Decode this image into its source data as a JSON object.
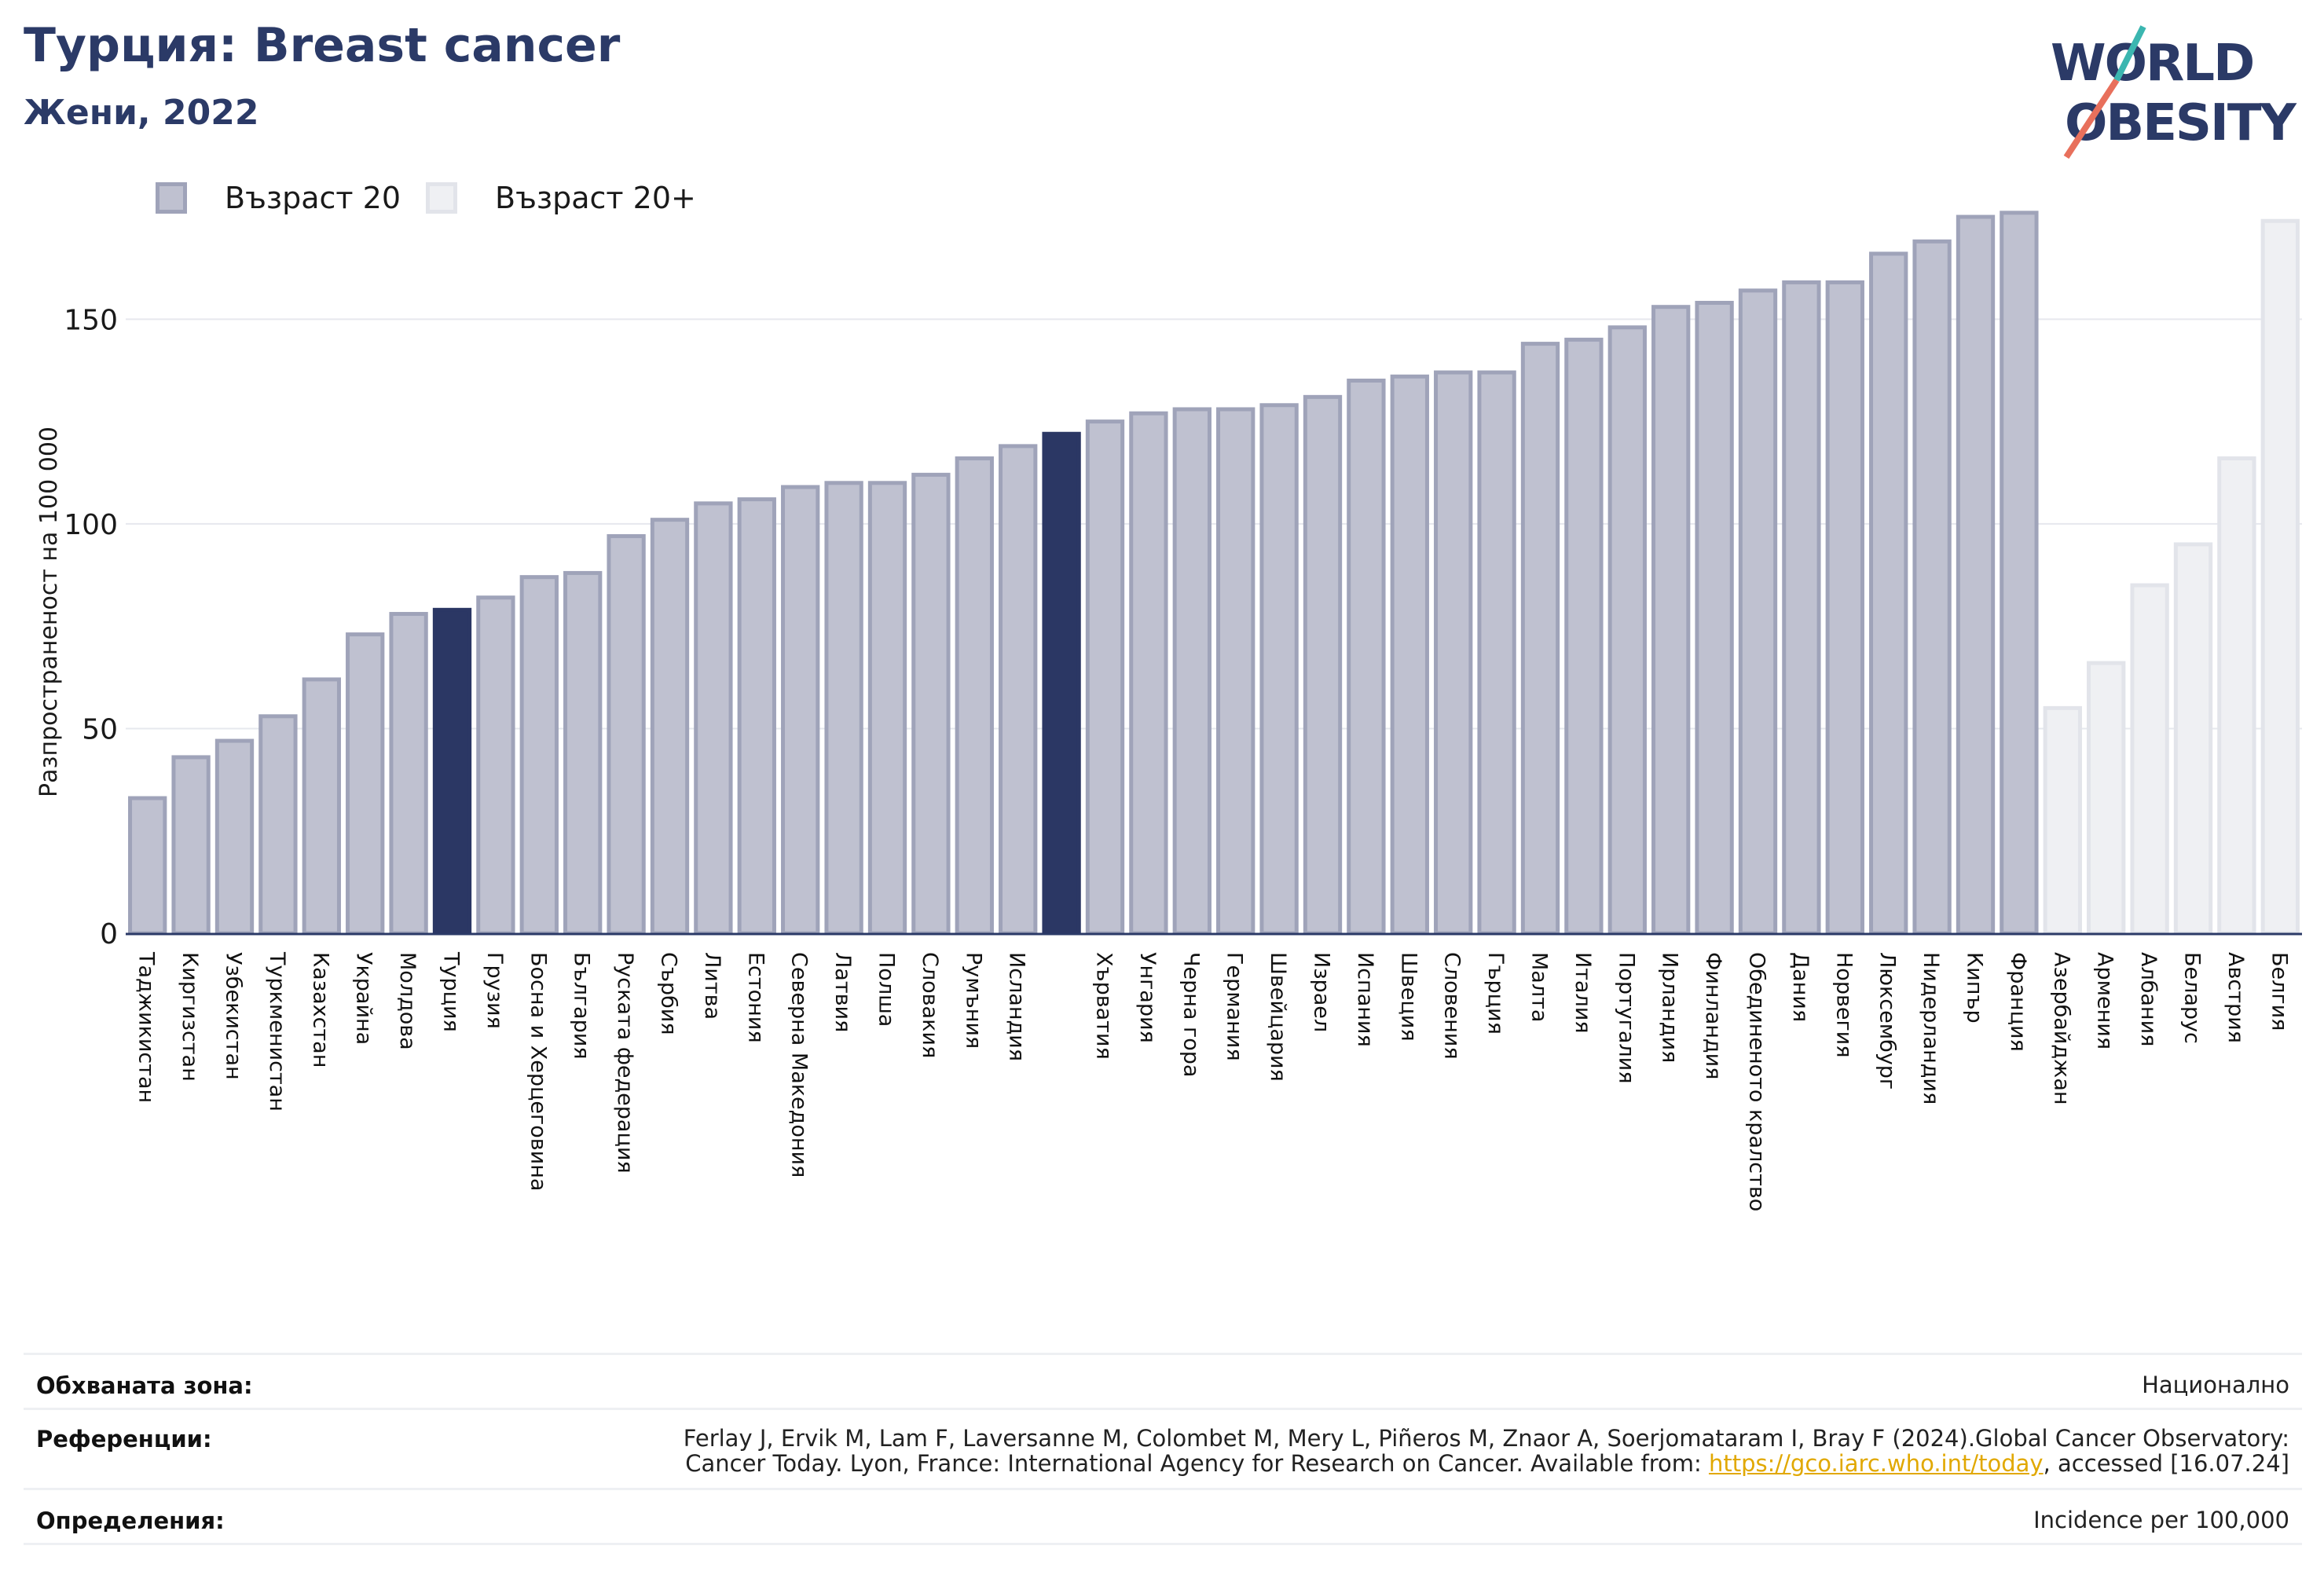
{
  "header": {
    "title": "Турция: Breast cancer",
    "subtitle": "Жени, 2022",
    "logo_text": "WORLD OBESITY"
  },
  "legend": {
    "items": [
      {
        "label": "Възраст 20",
        "color": "#bfc1d0",
        "border": "#9fa3b9"
      },
      {
        "label": "Възраст 20+",
        "color": "#eff0f3",
        "border": "#e2e4ea"
      }
    ]
  },
  "colors": {
    "highlight": "#2b3764",
    "series_main_fill": "#bfc1d0",
    "series_main_stroke": "#9fa3b9",
    "series_secondary_fill": "#eff0f3",
    "series_secondary_stroke": "#e2e4ea",
    "grid": "#e6e8ee",
    "axis": "#2b3a67",
    "link": "#e1a800"
  },
  "chart_data": {
    "type": "bar",
    "title": "Турция: Breast cancer",
    "subtitle": "Жени, 2022",
    "ylabel": "Разпространеност  на 100 000",
    "xlabel": "",
    "ylim": [
      0,
      180
    ],
    "yticks": [
      0,
      50,
      100,
      150
    ],
    "grid": true,
    "legend_position": "top-left",
    "bars": [
      {
        "category": "Таджикистан",
        "value": 33,
        "series": "Възраст 20"
      },
      {
        "category": "Киргизстан",
        "value": 43,
        "series": "Възраст 20"
      },
      {
        "category": "Узбекистан",
        "value": 47,
        "series": "Възраст 20"
      },
      {
        "category": "Туркменистан",
        "value": 53,
        "series": "Възраст 20"
      },
      {
        "category": "Казахстан",
        "value": 62,
        "series": "Възраст 20"
      },
      {
        "category": "Украйна",
        "value": 73,
        "series": "Възраст 20"
      },
      {
        "category": "Молдова",
        "value": 78,
        "series": "Възраст 20"
      },
      {
        "category": "Турция",
        "value": 79,
        "series": "Възраст 20",
        "highlight": true
      },
      {
        "category": "Грузия",
        "value": 82,
        "series": "Възраст 20"
      },
      {
        "category": "Босна и Херцеговина",
        "value": 87,
        "series": "Възраст 20"
      },
      {
        "category": "България",
        "value": 88,
        "series": "Възраст 20"
      },
      {
        "category": "Руската федерация",
        "value": 97,
        "series": "Възраст 20"
      },
      {
        "category": "Сърбия",
        "value": 101,
        "series": "Възраст 20"
      },
      {
        "category": "Литва",
        "value": 105,
        "series": "Възраст 20"
      },
      {
        "category": "Естония",
        "value": 106,
        "series": "Възраст 20"
      },
      {
        "category": "Северна Македония",
        "value": 109,
        "series": "Възраст 20"
      },
      {
        "category": "Латвия",
        "value": 110,
        "series": "Възраст 20"
      },
      {
        "category": "Полша",
        "value": 110,
        "series": "Възраст 20"
      },
      {
        "category": "Словакия",
        "value": 112,
        "series": "Възраст 20"
      },
      {
        "category": "Румъния",
        "value": 116,
        "series": "Възраст 20"
      },
      {
        "category": "Исландия",
        "value": 119,
        "series": "Възраст 20"
      },
      {
        "category": "",
        "value": 122,
        "series": "Възраст 20",
        "highlight": true
      },
      {
        "category": "Хърватия",
        "value": 125,
        "series": "Възраст 20"
      },
      {
        "category": "Унгария",
        "value": 127,
        "series": "Възраст 20"
      },
      {
        "category": "Черна гора",
        "value": 128,
        "series": "Възраст 20"
      },
      {
        "category": "Германия",
        "value": 128,
        "series": "Възраст 20"
      },
      {
        "category": "Швейцария",
        "value": 129,
        "series": "Възраст 20"
      },
      {
        "category": "Израел",
        "value": 131,
        "series": "Възраст 20"
      },
      {
        "category": "Испания",
        "value": 135,
        "series": "Възраст 20"
      },
      {
        "category": "Швеция",
        "value": 136,
        "series": "Възраст 20"
      },
      {
        "category": "Словения",
        "value": 137,
        "series": "Възраст 20"
      },
      {
        "category": "Гърция",
        "value": 137,
        "series": "Възраст 20"
      },
      {
        "category": "Малта",
        "value": 144,
        "series": "Възраст 20"
      },
      {
        "category": "Италия",
        "value": 145,
        "series": "Възраст 20"
      },
      {
        "category": "Португалия",
        "value": 148,
        "series": "Възраст 20"
      },
      {
        "category": "Ирландия",
        "value": 153,
        "series": "Възраст 20"
      },
      {
        "category": "Финландия",
        "value": 154,
        "series": "Възраст 20"
      },
      {
        "category": "Обединеното кралство",
        "value": 157,
        "series": "Възраст 20"
      },
      {
        "category": "Дания",
        "value": 159,
        "series": "Възраст 20"
      },
      {
        "category": "Норвегия",
        "value": 159,
        "series": "Възраст 20"
      },
      {
        "category": "Люксембург",
        "value": 166,
        "series": "Възраст 20"
      },
      {
        "category": "Нидерландия",
        "value": 169,
        "series": "Възраст 20"
      },
      {
        "category": "Кипър",
        "value": 175,
        "series": "Възраст 20"
      },
      {
        "category": "Франция",
        "value": 176,
        "series": "Възраст 20"
      },
      {
        "category": "Азербайджан",
        "value": 55,
        "series": "Възраст 20+"
      },
      {
        "category": "Армения",
        "value": 66,
        "series": "Възраст 20+"
      },
      {
        "category": "Албания",
        "value": 85,
        "series": "Възраст 20+"
      },
      {
        "category": "Беларус",
        "value": 95,
        "series": "Възраст 20+"
      },
      {
        "category": "Австрия",
        "value": 116,
        "series": "Възраст 20+"
      },
      {
        "category": "Белгия",
        "value": 174,
        "series": "Възраст 20+"
      }
    ]
  },
  "footer": {
    "coverage_label": "Обхваната зона:",
    "coverage_value": "Национално",
    "references_label": "Референции:",
    "references_line1": "Ferlay J, Ervik M, Lam F, Laversanne M, Colombet M, Mery L, Piñeros M, Znaor A, Soerjomataram I, Bray F (2024).Global Cancer Observatory:",
    "references_line2_pre": "Cancer Today. Lyon, France: International Agency for Research on Cancer. Available from: ",
    "references_link": "https://gco.iarc.who.int/today",
    "references_line2_post": ", accessed [16.07.24]",
    "definitions_label": "Определения:",
    "definitions_value": "Incidence per 100,000"
  }
}
